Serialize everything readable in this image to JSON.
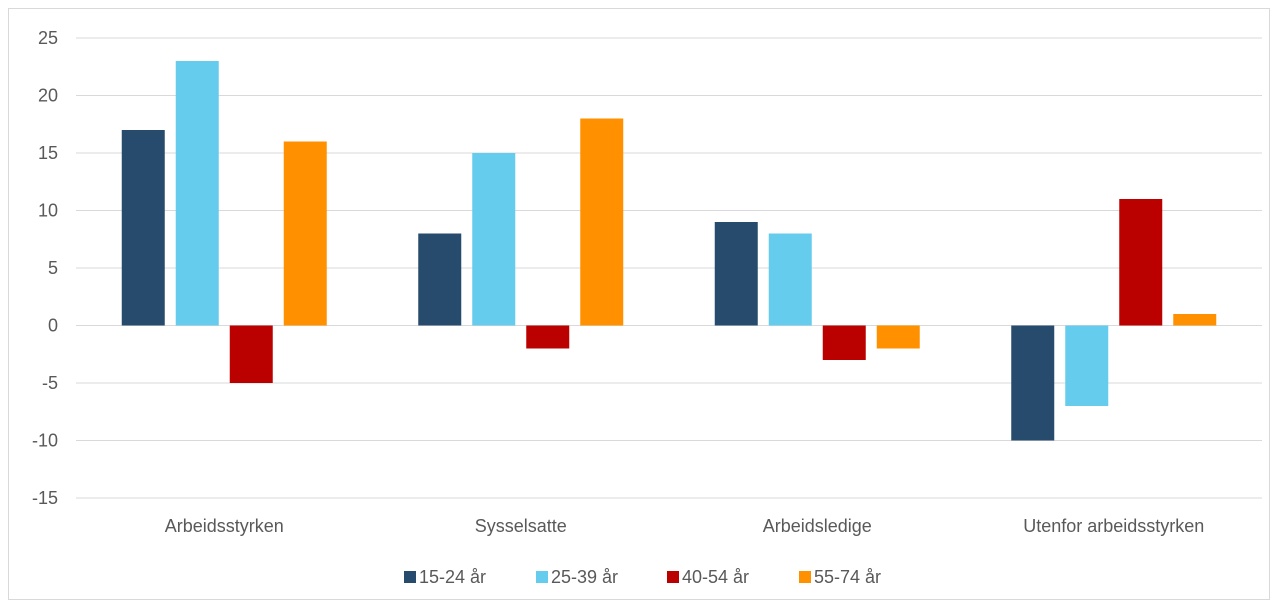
{
  "chart_data": {
    "type": "bar",
    "categories": [
      "Arbeidsstyrken",
      "Sysselsatte",
      "Arbeidsledige",
      "Utenfor arbeidsstyrken"
    ],
    "series": [
      {
        "name": "15-24 år",
        "color": "#264b6d",
        "values": [
          17,
          8,
          9,
          -10
        ]
      },
      {
        "name": "25-39 år",
        "color": "#66ccee",
        "values": [
          23,
          15,
          8,
          -7
        ]
      },
      {
        "name": "40-54 år",
        "color": "#bb0000",
        "values": [
          -5,
          -2,
          -3,
          11
        ]
      },
      {
        "name": "55-74 år",
        "color": "#ff9100",
        "values": [
          16,
          18,
          -2,
          1
        ]
      }
    ],
    "yticks": [
      "25",
      "20",
      "15",
      "10",
      "5",
      "0",
      "-5",
      "-10",
      "-15"
    ],
    "ylim": [
      -15,
      25
    ],
    "ystep": 5,
    "grid": true,
    "legend_position": "bottom"
  }
}
